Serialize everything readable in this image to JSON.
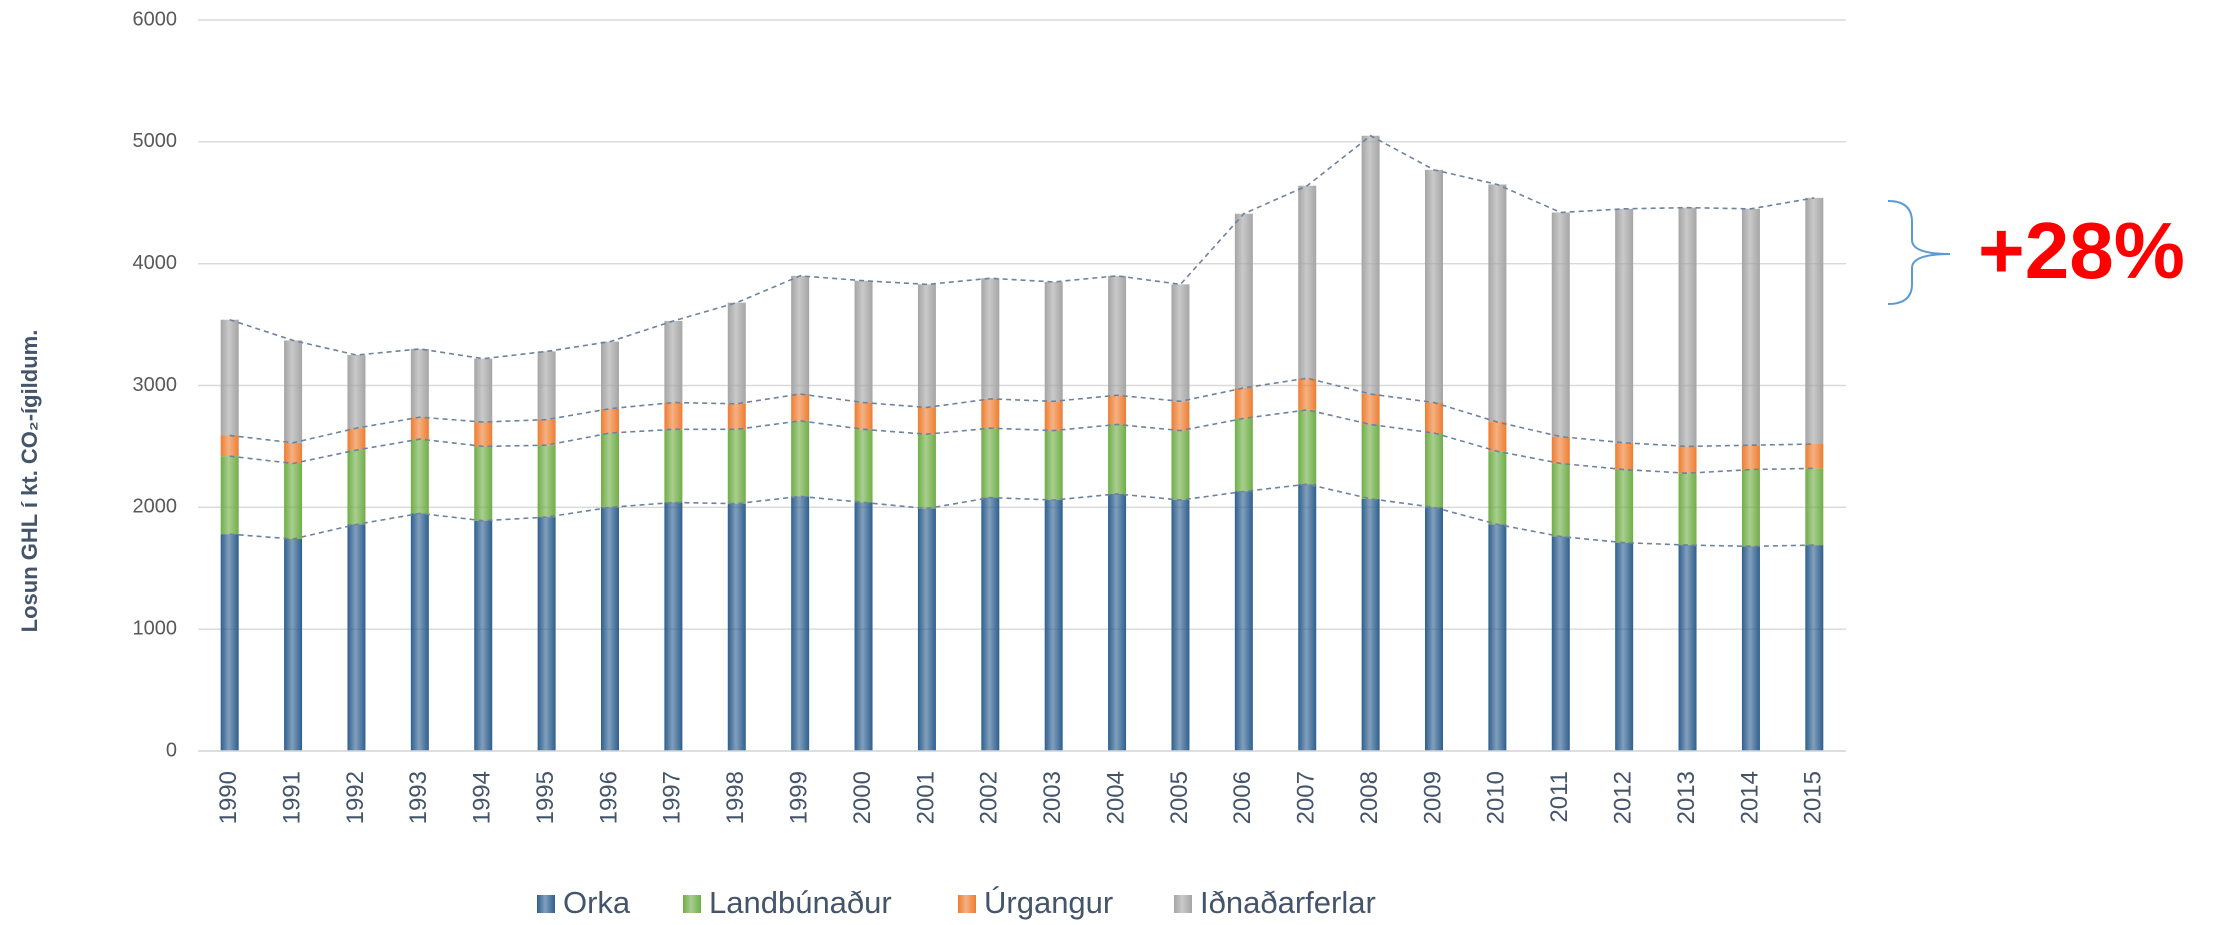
{
  "chart_data": {
    "type": "bar",
    "stacked": true,
    "y_label": "Losun GHL í kt. CO₂-ígildum.",
    "annotation": "+28%",
    "categories": [
      "1990",
      "1991",
      "1992",
      "1993",
      "1994",
      "1995",
      "1996",
      "1997",
      "1998",
      "1999",
      "2000",
      "2001",
      "2002",
      "2003",
      "2004",
      "2005",
      "2006",
      "2007",
      "2008",
      "2009",
      "2010",
      "2011",
      "2012",
      "2013",
      "2014",
      "2015"
    ],
    "series": [
      {
        "name": "Orka",
        "color": "#2e5f8e",
        "values": [
          1780,
          1740,
          1860,
          1950,
          1890,
          1920,
          2000,
          2040,
          2030,
          2090,
          2040,
          1990,
          2080,
          2060,
          2110,
          2060,
          2130,
          2190,
          2070,
          2000,
          1860,
          1760,
          1710,
          1690,
          1680,
          1690
        ]
      },
      {
        "name": "Landbúnaður",
        "color": "#70ad47",
        "values": [
          640,
          620,
          610,
          610,
          610,
          590,
          610,
          600,
          610,
          620,
          600,
          610,
          570,
          570,
          570,
          570,
          600,
          610,
          610,
          610,
          600,
          600,
          600,
          590,
          630,
          630
        ]
      },
      {
        "name": "Úrgangur",
        "color": "#ed7d31",
        "values": [
          170,
          170,
          180,
          180,
          200,
          210,
          200,
          220,
          210,
          220,
          220,
          220,
          240,
          240,
          240,
          240,
          250,
          260,
          250,
          250,
          240,
          220,
          220,
          220,
          200,
          200
        ]
      },
      {
        "name": "Iðnaðarferlar",
        "color": "#a5a5a5",
        "values": [
          950,
          840,
          600,
          560,
          520,
          560,
          550,
          670,
          830,
          970,
          1000,
          1010,
          990,
          980,
          980,
          960,
          1430,
          1580,
          2120,
          1910,
          1950,
          1840,
          1920,
          1960,
          1940,
          2020
        ]
      }
    ],
    "ylim": [
      0,
      6000
    ],
    "yticks": [
      0,
      1000,
      2000,
      3000,
      4000,
      5000,
      6000
    ],
    "grid": true,
    "legend": "bottom"
  }
}
